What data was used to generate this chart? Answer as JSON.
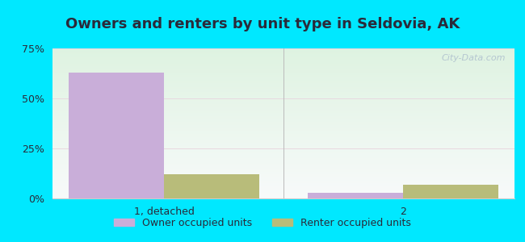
{
  "title": "Owners and renters by unit type in Seldovia, AK",
  "categories": [
    "1, detached",
    "2"
  ],
  "owner_values": [
    63,
    3
  ],
  "renter_values": [
    12,
    7
  ],
  "owner_color": "#c9aed9",
  "renter_color": "#b8bc7a",
  "ylim": [
    0,
    75
  ],
  "yticks": [
    0,
    25,
    50,
    75
  ],
  "ytick_labels": [
    "0%",
    "25%",
    "50%",
    "75%"
  ],
  "bar_width": 0.3,
  "legend_owner": "Owner occupied units",
  "legend_renter": "Renter occupied units",
  "outer_bg": "#00e8ff",
  "title_fontsize": 13,
  "tick_fontsize": 9,
  "legend_fontsize": 9,
  "watermark": "City-Data.com",
  "text_color": "#2a2a3a"
}
